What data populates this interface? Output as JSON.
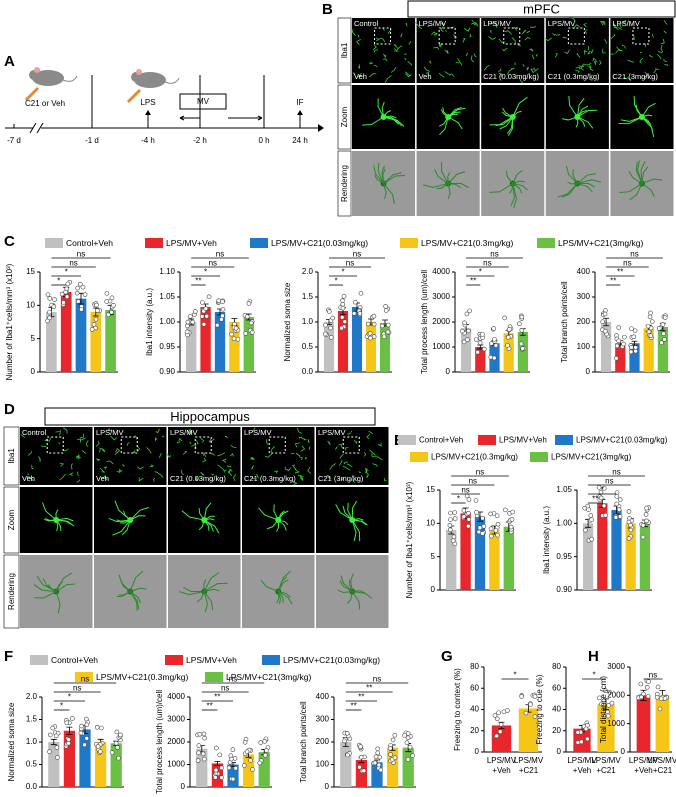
{
  "panels": [
    "A",
    "B",
    "C",
    "D",
    "E",
    "F",
    "G",
    "H"
  ],
  "timeline": {
    "times": [
      "-7 d",
      "-1 d",
      "-4 h",
      "-2 h",
      "0 h",
      "24 h"
    ],
    "events": [
      "C21 or Veh",
      "LPS",
      "MV",
      "IF"
    ]
  },
  "image_grids": [
    {
      "region": "mPFC",
      "groups": [
        "Control",
        "LPS/MV",
        "LPS/MV",
        "LPS/MV",
        "LPS/MV"
      ],
      "treatments": [
        "Veh",
        "Veh",
        "C21 (0.03mg/kg)",
        "C21 (0.3mg/kg)",
        "C21 (3mg/kg)"
      ],
      "rows": [
        "Iba1",
        "Zoom",
        "Rendering"
      ]
    },
    {
      "region": "Hippocampus",
      "groups": [
        "Control",
        "LPS/MV",
        "LPS/MV",
        "LPS/MV",
        "LPS/MV"
      ],
      "treatments": [
        "Veh",
        "Veh",
        "C21 (0.03mg/kg)",
        "C21 (0.3mg/kg)",
        "C21 (3mg/kg)"
      ],
      "rows": [
        "Iba1",
        "Zoom",
        "Rendering"
      ]
    }
  ],
  "legends": {
    "C": [
      {
        "name": "Control+Veh",
        "color": "#c0c0c0"
      },
      {
        "name": "LPS/MV+Veh",
        "color": "#e8262b"
      },
      {
        "name": "LPS/MV+C21(0.03mg/kg)",
        "color": "#1f78c8"
      },
      {
        "name": "LPS/MV+C21(0.3mg/kg)",
        "color": "#f5c518"
      },
      {
        "name": "LPS/MV+C21(3mg/kg)",
        "color": "#6abf45"
      }
    ],
    "E": [
      {
        "name": "Control+Veh",
        "color": "#c0c0c0"
      },
      {
        "name": "LPS/MV+Veh",
        "color": "#e8262b"
      },
      {
        "name": "LPS/MV+C21(0.03mg/kg)",
        "color": "#1f78c8"
      },
      {
        "name": "LPS/MV+C21(0.3mg/kg)",
        "color": "#f5c518"
      },
      {
        "name": "LPS/MV+C21(3mg/kg)",
        "color": "#6abf45"
      }
    ],
    "F": [
      {
        "name": "Control+Veh",
        "color": "#c0c0c0"
      },
      {
        "name": "LPS/MV+Veh",
        "color": "#e8262b"
      },
      {
        "name": "LPS/MV+C21(0.03mg/kg)",
        "color": "#1f78c8"
      },
      {
        "name": "LPS/MV+C21(0.3mg/kg)",
        "color": "#f5c518"
      },
      {
        "name": "LPS/MV+C21(3mg/kg)",
        "color": "#6abf45"
      }
    ]
  },
  "chart_data": [
    {
      "type": "bar",
      "ylabel": "Number of Iba1⁺cells/mm³ (x10³)",
      "values": [
        9,
        12,
        11,
        9,
        9.3
      ],
      "errors": [
        0.7,
        0.7,
        0.8,
        0.6,
        0.7
      ],
      "colors": [
        "#c0c0c0",
        "#e8262b",
        "#1f78c8",
        "#f5c518",
        "#6abf45"
      ],
      "ylim": [
        0,
        15
      ],
      "yticks": [
        0,
        5,
        10,
        15
      ],
      "comparisons": [
        {
          "groups": [
            0,
            4
          ],
          "label": "ns"
        },
        {
          "groups": [
            0,
            3
          ],
          "label": "ns"
        },
        {
          "groups": [
            0,
            2
          ],
          "label": "*"
        },
        {
          "groups": [
            0,
            1
          ],
          "label": "*"
        }
      ]
    },
    {
      "type": "bar",
      "ylabel": "Iba1 intensity (a.u.)",
      "values": [
        1.0,
        1.03,
        1.02,
        1.0,
        1.01
      ],
      "errors": [
        0.006,
        0.006,
        0.006,
        0.007,
        0.006
      ],
      "colors": [
        "#c0c0c0",
        "#e8262b",
        "#1f78c8",
        "#f5c518",
        "#6abf45"
      ],
      "ylim": [
        0.9,
        1.1
      ],
      "yticks": [
        {
          "value": 0.9,
          "label": "0.90"
        },
        {
          "value": 0.95,
          "label": "0.95"
        },
        {
          "value": 1.0,
          "label": "1.00"
        },
        {
          "value": 1.05,
          "label": "1.05"
        },
        {
          "value": 1.1,
          "label": "1.10"
        }
      ],
      "comparisons": [
        {
          "groups": [
            0,
            4
          ],
          "label": "ns"
        },
        {
          "groups": [
            0,
            3
          ],
          "label": "ns"
        },
        {
          "groups": [
            0,
            2
          ],
          "label": "*"
        },
        {
          "groups": [
            0,
            1
          ],
          "label": "**"
        }
      ]
    },
    {
      "type": "bar",
      "ylabel": "Normalized soma size",
      "values": [
        1.0,
        1.22,
        1.3,
        1.0,
        0.98
      ],
      "errors": [
        0.05,
        0.07,
        0.08,
        0.06,
        0.06
      ],
      "colors": [
        "#c0c0c0",
        "#e8262b",
        "#1f78c8",
        "#f5c518",
        "#6abf45"
      ],
      "ylim": [
        0,
        2
      ],
      "yticks": [
        {
          "value": 0,
          "label": "0.0"
        },
        {
          "value": 0.5,
          "label": "0.5"
        },
        {
          "value": 1,
          "label": "1.0"
        },
        {
          "value": 1.5,
          "label": "1.5"
        },
        {
          "value": 2,
          "label": "2.0"
        }
      ],
      "comparisons": [
        {
          "groups": [
            0,
            4
          ],
          "label": "ns"
        },
        {
          "groups": [
            0,
            3
          ],
          "label": "ns"
        },
        {
          "groups": [
            0,
            2
          ],
          "label": "*"
        },
        {
          "groups": [
            0,
            1
          ],
          "label": "*"
        }
      ]
    },
    {
      "type": "bar",
      "ylabel": "Total process length (um)/cell",
      "values": [
        1750,
        1000,
        1150,
        1550,
        1600
      ],
      "errors": [
        150,
        80,
        100,
        120,
        130
      ],
      "colors": [
        "#c0c0c0",
        "#e8262b",
        "#1f78c8",
        "#f5c518",
        "#6abf45"
      ],
      "ylim": [
        0,
        4000
      ],
      "yticks": [
        0,
        1000,
        2000,
        3000,
        4000
      ],
      "comparisons": [
        {
          "groups": [
            0,
            4
          ],
          "label": "ns"
        },
        {
          "groups": [
            0,
            3
          ],
          "label": "ns"
        },
        {
          "groups": [
            0,
            2
          ],
          "label": "*"
        },
        {
          "groups": [
            0,
            1
          ],
          "label": "**"
        }
      ]
    },
    {
      "type": "bar",
      "ylabel": "Total branch points/cell",
      "values": [
        200,
        115,
        115,
        175,
        180
      ],
      "errors": [
        15,
        10,
        8,
        12,
        15
      ],
      "colors": [
        "#c0c0c0",
        "#e8262b",
        "#1f78c8",
        "#f5c518",
        "#6abf45"
      ],
      "ylim": [
        0,
        400
      ],
      "yticks": [
        0,
        100,
        200,
        300,
        400
      ],
      "comparisons": [
        {
          "groups": [
            0,
            4
          ],
          "label": "ns"
        },
        {
          "groups": [
            0,
            3
          ],
          "label": "ns"
        },
        {
          "groups": [
            0,
            2
          ],
          "label": "**"
        },
        {
          "groups": [
            0,
            1
          ],
          "label": "**"
        }
      ]
    },
    {
      "type": "bar",
      "ylabel": "Number of Iba1⁺cells/mm³ (x10³)",
      "values": [
        9,
        11.5,
        11,
        9,
        9.5
      ],
      "errors": [
        0.6,
        0.8,
        0.7,
        0.6,
        0.7
      ],
      "colors": [
        "#c0c0c0",
        "#e8262b",
        "#1f78c8",
        "#f5c518",
        "#6abf45"
      ],
      "ylim": [
        0,
        15
      ],
      "yticks": [
        0,
        5,
        10,
        15
      ],
      "comparisons": [
        {
          "groups": [
            0,
            4
          ],
          "label": "ns"
        },
        {
          "groups": [
            0,
            3
          ],
          "label": "ns"
        },
        {
          "groups": [
            0,
            2
          ],
          "label": "ns"
        },
        {
          "groups": [
            0,
            1
          ],
          "label": "*"
        }
      ]
    },
    {
      "type": "bar",
      "ylabel": "Iba1 intensity (a.u.)",
      "values": [
        1.0,
        1.03,
        1.02,
        1.0,
        1.0
      ],
      "errors": [
        0.006,
        0.006,
        0.006,
        0.007,
        0.005
      ],
      "colors": [
        "#c0c0c0",
        "#e8262b",
        "#1f78c8",
        "#f5c518",
        "#6abf45"
      ],
      "ylim": [
        0.9,
        1.05
      ],
      "yticks": [
        {
          "value": 0.9,
          "label": "0.90"
        },
        {
          "value": 0.95,
          "label": "0.95"
        },
        {
          "value": 1.0,
          "label": "1.00"
        },
        {
          "value": 1.05,
          "label": "1.05"
        }
      ],
      "comparisons": [
        {
          "groups": [
            0,
            4
          ],
          "label": "ns"
        },
        {
          "groups": [
            0,
            3
          ],
          "label": "ns"
        },
        {
          "groups": [
            0,
            2
          ],
          "label": "*"
        },
        {
          "groups": [
            0,
            1
          ],
          "label": "**"
        }
      ]
    },
    {
      "type": "bar",
      "ylabel": "Normalized soma size",
      "values": [
        1.0,
        1.25,
        1.28,
        1.0,
        0.97
      ],
      "errors": [
        0.06,
        0.08,
        0.09,
        0.06,
        0.05
      ],
      "colors": [
        "#c0c0c0",
        "#e8262b",
        "#1f78c8",
        "#f5c518",
        "#6abf45"
      ],
      "ylim": [
        0,
        2
      ],
      "yticks": [
        {
          "value": 0,
          "label": "0.0"
        },
        {
          "value": 0.5,
          "label": "0.5"
        },
        {
          "value": 1,
          "label": "1.0"
        },
        {
          "value": 1.5,
          "label": "1.5"
        },
        {
          "value": 2,
          "label": "2.0"
        }
      ],
      "comparisons": [
        {
          "groups": [
            0,
            4
          ],
          "label": "ns"
        },
        {
          "groups": [
            0,
            3
          ],
          "label": "ns"
        },
        {
          "groups": [
            0,
            2
          ],
          "label": "*"
        },
        {
          "groups": [
            0,
            1
          ],
          "label": "*"
        }
      ]
    },
    {
      "type": "bar",
      "ylabel": "Total process length (um)/cell",
      "values": [
        1700,
        1050,
        1000,
        1450,
        1550
      ],
      "errors": [
        140,
        90,
        80,
        130,
        120
      ],
      "colors": [
        "#c0c0c0",
        "#e8262b",
        "#1f78c8",
        "#f5c518",
        "#6abf45"
      ],
      "ylim": [
        0,
        4000
      ],
      "yticks": [
        0,
        1000,
        2000,
        3000,
        4000
      ],
      "comparisons": [
        {
          "groups": [
            0,
            4
          ],
          "label": "ns"
        },
        {
          "groups": [
            0,
            3
          ],
          "label": "ns"
        },
        {
          "groups": [
            0,
            2
          ],
          "label": "**"
        },
        {
          "groups": [
            0,
            1
          ],
          "label": "**"
        }
      ]
    },
    {
      "type": "bar",
      "ylabel": "Total branch points/cell",
      "values": [
        200,
        120,
        110,
        175,
        175
      ],
      "errors": [
        20,
        12,
        10,
        12,
        18
      ],
      "colors": [
        "#c0c0c0",
        "#e8262b",
        "#1f78c8",
        "#f5c518",
        "#6abf45"
      ],
      "ylim": [
        0,
        400
      ],
      "yticks": [
        0,
        100,
        200,
        300,
        400
      ],
      "comparisons": [
        {
          "groups": [
            0,
            4
          ],
          "label": "ns"
        },
        {
          "groups": [
            0,
            3
          ],
          "label": "**"
        },
        {
          "groups": [
            0,
            2
          ],
          "label": "**"
        },
        {
          "groups": [
            0,
            1
          ],
          "label": "**"
        }
      ]
    },
    {
      "type": "bar",
      "ylabel": "Freezing to context (%)",
      "categories": [
        [
          "LPS/MV",
          "+Veh"
        ],
        [
          "LPS/MV",
          "+C21"
        ]
      ],
      "values": [
        25,
        41
      ],
      "errors": [
        3,
        3.5
      ],
      "colors": [
        "#e8262b",
        "#f5c518"
      ],
      "ylim": [
        0,
        80
      ],
      "yticks": [
        0,
        20,
        40,
        60,
        80
      ],
      "comparisons": [
        {
          "groups": [
            0,
            1
          ],
          "label": "*"
        }
      ]
    },
    {
      "type": "bar",
      "ylabel": "Freezing to cue (%)",
      "categories": [
        [
          "LPS/MV",
          "+Veh"
        ],
        [
          "LPS/MV",
          "+C21"
        ]
      ],
      "values": [
        22,
        45
      ],
      "errors": [
        3,
        5
      ],
      "colors": [
        "#e8262b",
        "#f5c518"
      ],
      "ylim": [
        0,
        80
      ],
      "yticks": [
        0,
        20,
        40,
        60,
        80
      ],
      "comparisons": [
        {
          "groups": [
            0,
            1
          ],
          "label": "*"
        }
      ]
    },
    {
      "type": "bar",
      "ylabel": "Total distance (cm)",
      "categories": [
        [
          "LPS/MV",
          "+Veh"
        ],
        [
          "LPS/MV",
          "+C21"
        ]
      ],
      "values": [
        2000,
        2000
      ],
      "errors": [
        180,
        170
      ],
      "colors": [
        "#e8262b",
        "#f5c518"
      ],
      "ylim": [
        0,
        3000
      ],
      "yticks": [
        0,
        1000,
        2000,
        3000
      ],
      "comparisons": [
        {
          "groups": [
            0,
            1
          ],
          "label": "ns"
        }
      ]
    }
  ]
}
